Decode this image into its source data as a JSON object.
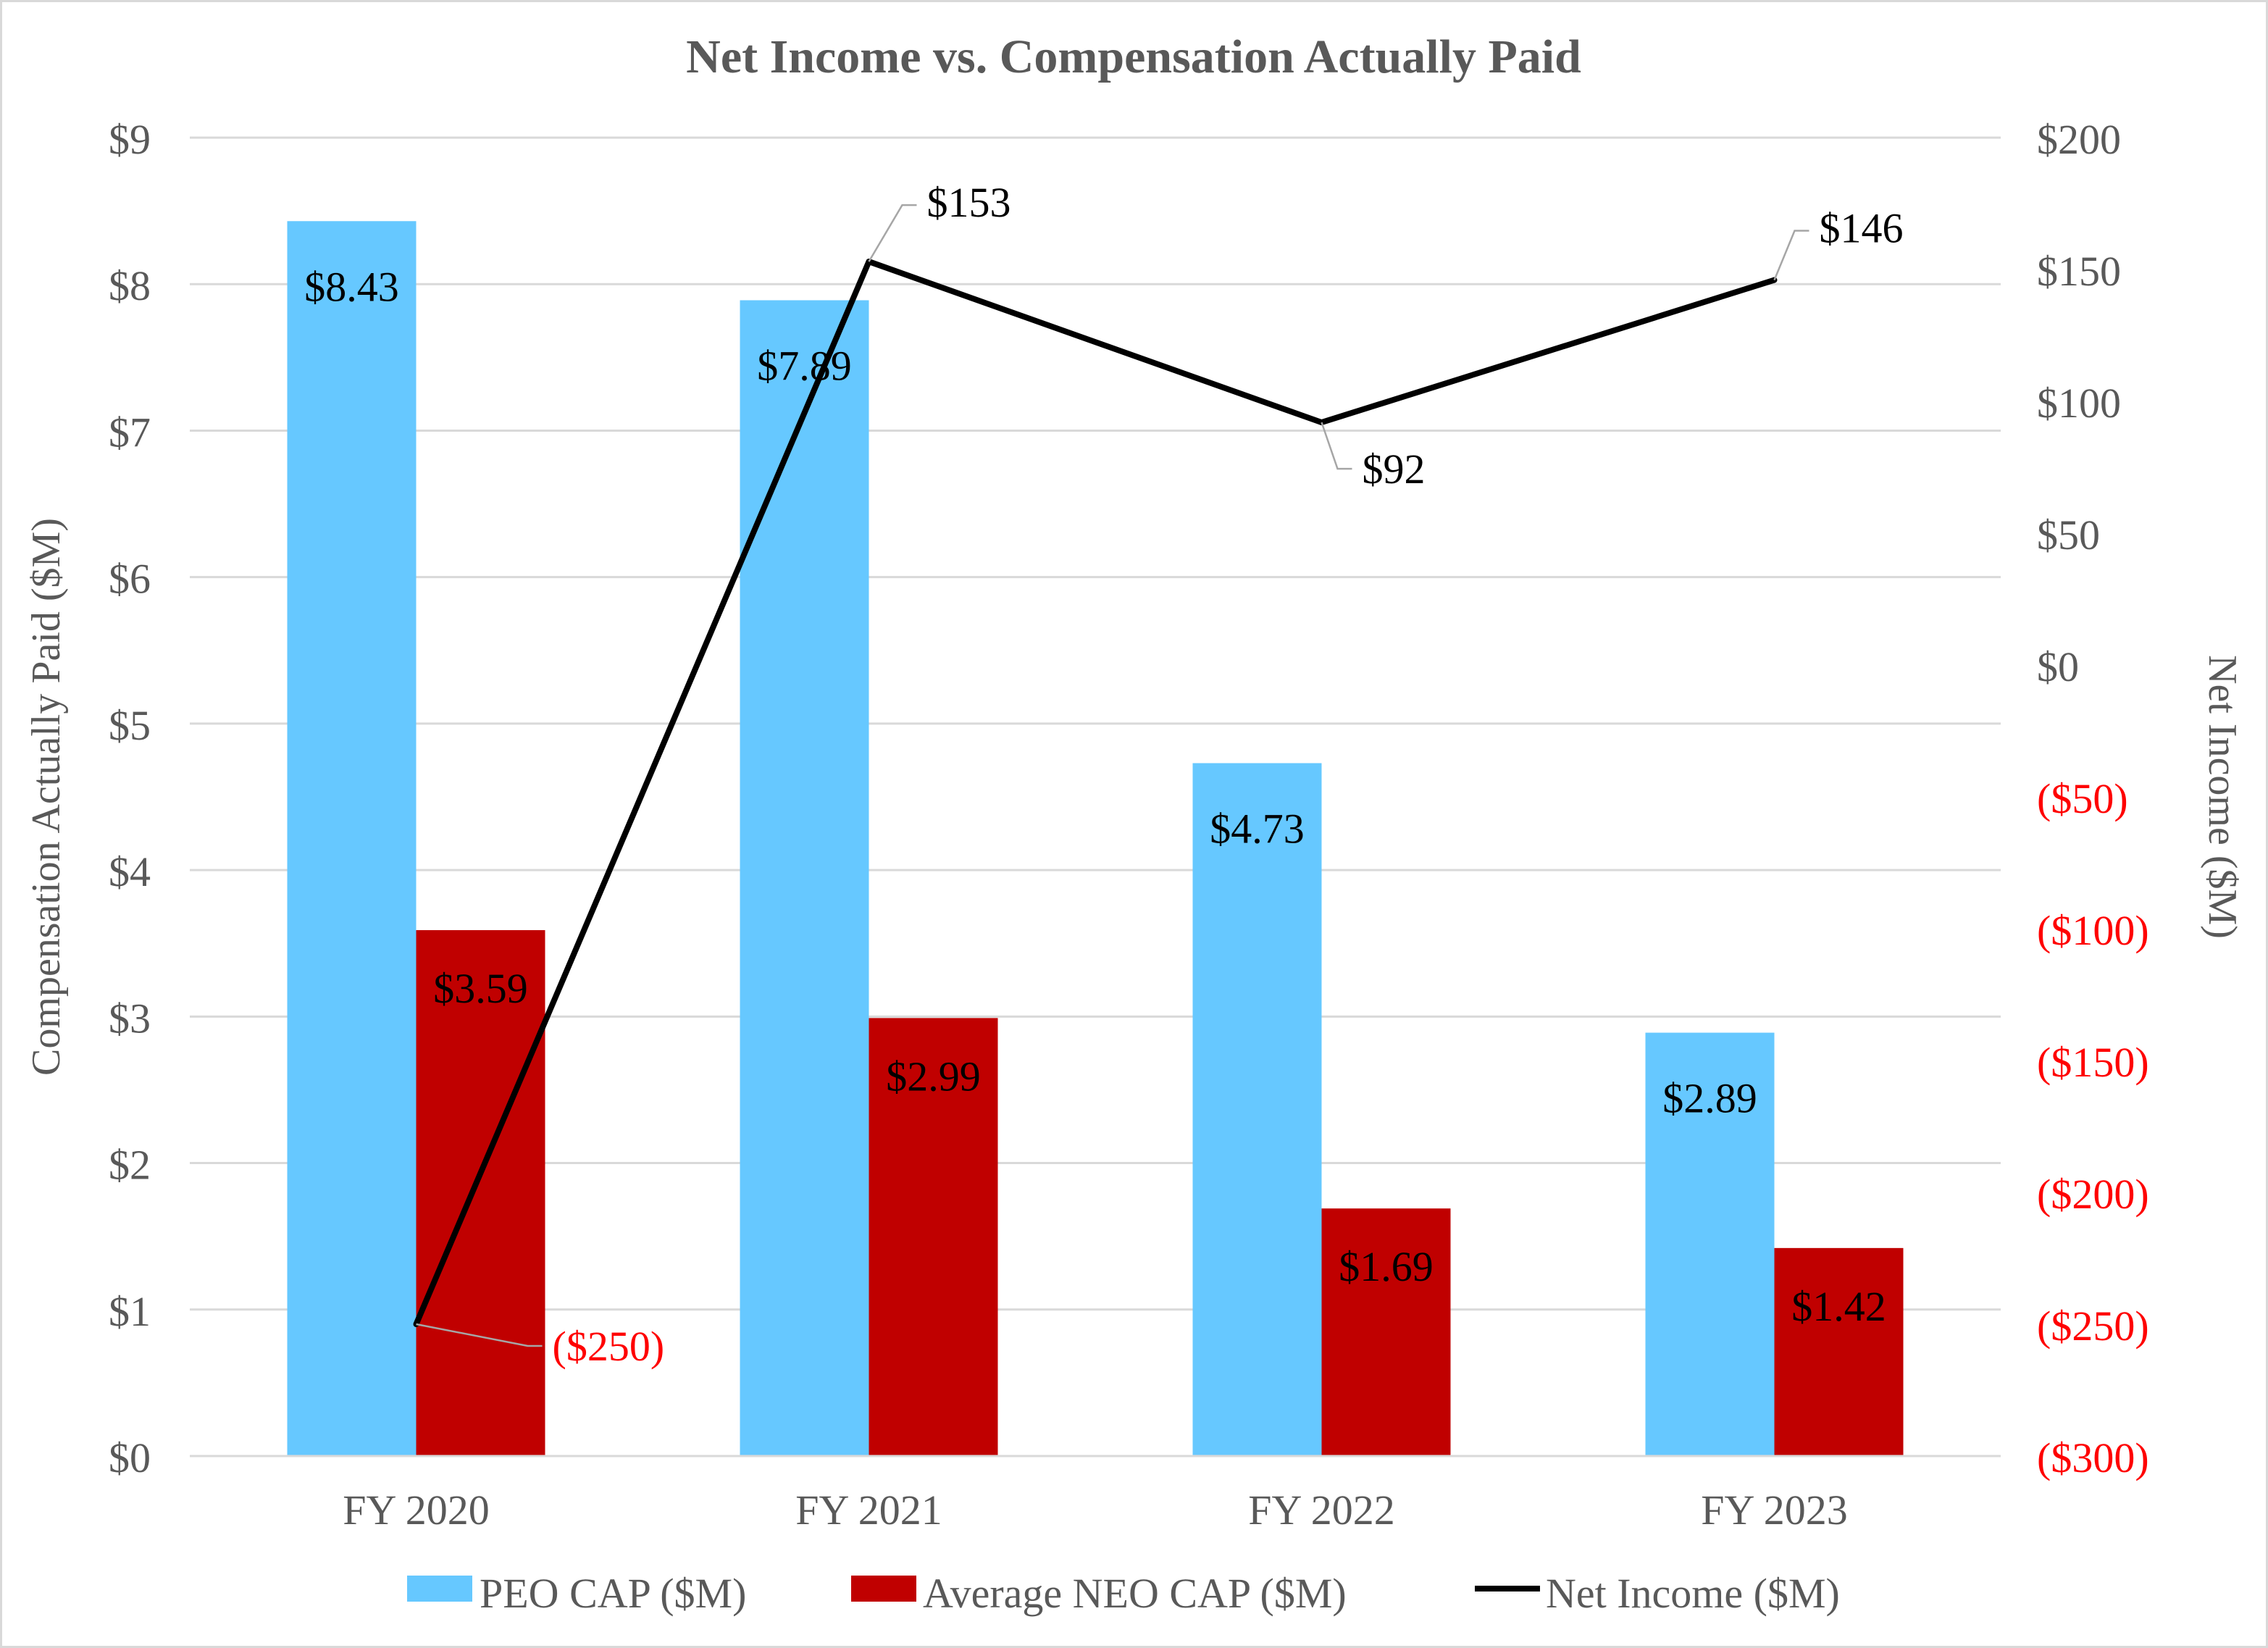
{
  "chart_data": {
    "type": "bar",
    "title": "Net Income vs. Compensation Actually Paid",
    "xlabel": "",
    "ylabel": "Compensation Actually Paid ($M)",
    "y2label": "Net Income ($M)",
    "categories": [
      "FY 2020",
      "FY 2021",
      "FY 2022",
      "FY 2023"
    ],
    "ylim": [
      0,
      9
    ],
    "y2lim": [
      -300,
      200
    ],
    "y_ticks": [
      {
        "value": 0,
        "label": "$0"
      },
      {
        "value": 1,
        "label": "$1"
      },
      {
        "value": 2,
        "label": "$2"
      },
      {
        "value": 3,
        "label": "$3"
      },
      {
        "value": 4,
        "label": "$4"
      },
      {
        "value": 5,
        "label": "$5"
      },
      {
        "value": 6,
        "label": "$6"
      },
      {
        "value": 7,
        "label": "$7"
      },
      {
        "value": 8,
        "label": "$8"
      },
      {
        "value": 9,
        "label": "$9"
      }
    ],
    "y2_ticks": [
      {
        "value": 200,
        "label": "$200"
      },
      {
        "value": 150,
        "label": "$150"
      },
      {
        "value": 100,
        "label": "$100"
      },
      {
        "value": 50,
        "label": "$50"
      },
      {
        "value": 0,
        "label": "$0"
      },
      {
        "value": -50,
        "label": "($50)"
      },
      {
        "value": -100,
        "label": "($100)"
      },
      {
        "value": -150,
        "label": "($150)"
      },
      {
        "value": -200,
        "label": "($200)"
      },
      {
        "value": -250,
        "label": "($250)"
      },
      {
        "value": -300,
        "label": "($300)"
      }
    ],
    "series": [
      {
        "name": "PEO CAP ($M)",
        "type": "bar",
        "axis": "left",
        "color": "#66c8ff",
        "values": [
          8.43,
          7.89,
          4.73,
          2.89
        ],
        "labels": [
          "$8.43",
          "$7.89",
          "$4.73",
          "$2.89"
        ]
      },
      {
        "name": "Average NEO CAP ($M)",
        "type": "bar",
        "axis": "left",
        "color": "#c00000",
        "values": [
          3.59,
          2.99,
          1.69,
          1.42
        ],
        "labels": [
          "$3.59",
          "$2.99",
          "$1.69",
          "$1.42"
        ]
      },
      {
        "name": "Net Income ($M)",
        "type": "line",
        "axis": "right",
        "color": "#000000",
        "values": [
          -250,
          153,
          92,
          146
        ],
        "labels": [
          "($250)",
          "$153",
          "$92",
          "$146"
        ]
      }
    ],
    "colors": {
      "negative_label": "#ff0000",
      "text": "#000000",
      "axis_text": "#595959",
      "grid": "#d9d9d9"
    },
    "grid": true,
    "legend_position": "bottom"
  }
}
